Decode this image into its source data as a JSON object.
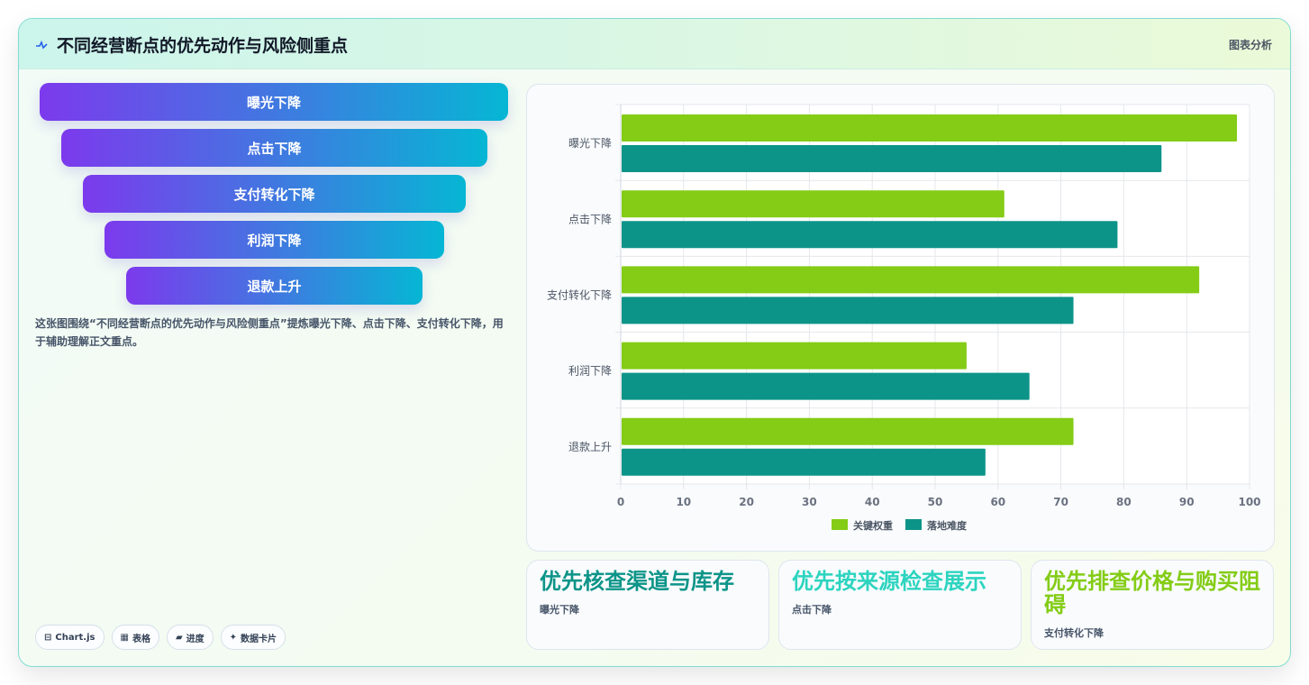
{
  "header": {
    "title": "不同经营断点的优先动作与风险侧重点",
    "tag": "图表分析"
  },
  "funnel": [
    "曝光下降",
    "点击下降",
    "支付转化下降",
    "利润下降",
    "退款上升"
  ],
  "description": "这张图围绕“不同经营断点的优先动作与风险侧重点”提炼曝光下降、点击下降、支付转化下降，用于辅助理解正文重点。",
  "chips": [
    {
      "icon": "⊟",
      "label": "Chart.js"
    },
    {
      "icon": "▦",
      "label": "表格"
    },
    {
      "icon": "▰",
      "label": "进度"
    },
    {
      "icon": "✦",
      "label": "数据卡片"
    }
  ],
  "chart_data": {
    "type": "bar",
    "orientation": "horizontal",
    "categories": [
      "曝光下降",
      "点击下降",
      "支付转化下降",
      "利润下降",
      "退款上升"
    ],
    "series": [
      {
        "name": "关键权重",
        "values": [
          98,
          61,
          92,
          55,
          72
        ],
        "color": "#84cc16"
      },
      {
        "name": "落地难度",
        "values": [
          86,
          79,
          72,
          65,
          58
        ],
        "color": "#0d9488"
      }
    ],
    "xlim": [
      0,
      100
    ],
    "xticks": [
      0,
      10,
      20,
      30,
      40,
      50,
      60,
      70,
      80,
      90,
      100
    ],
    "grid": true,
    "legend": "bottom"
  },
  "action_cards": [
    {
      "title": "优先核查渠道与库存",
      "sub": "曝光下降",
      "color": "#0d9488"
    },
    {
      "title": "优先按来源检查展示",
      "sub": "点击下降",
      "color": "#2dd4bf"
    },
    {
      "title": "优先排查价格与购买阻碍",
      "sub": "支付转化下降",
      "color": "#84cc16"
    }
  ]
}
